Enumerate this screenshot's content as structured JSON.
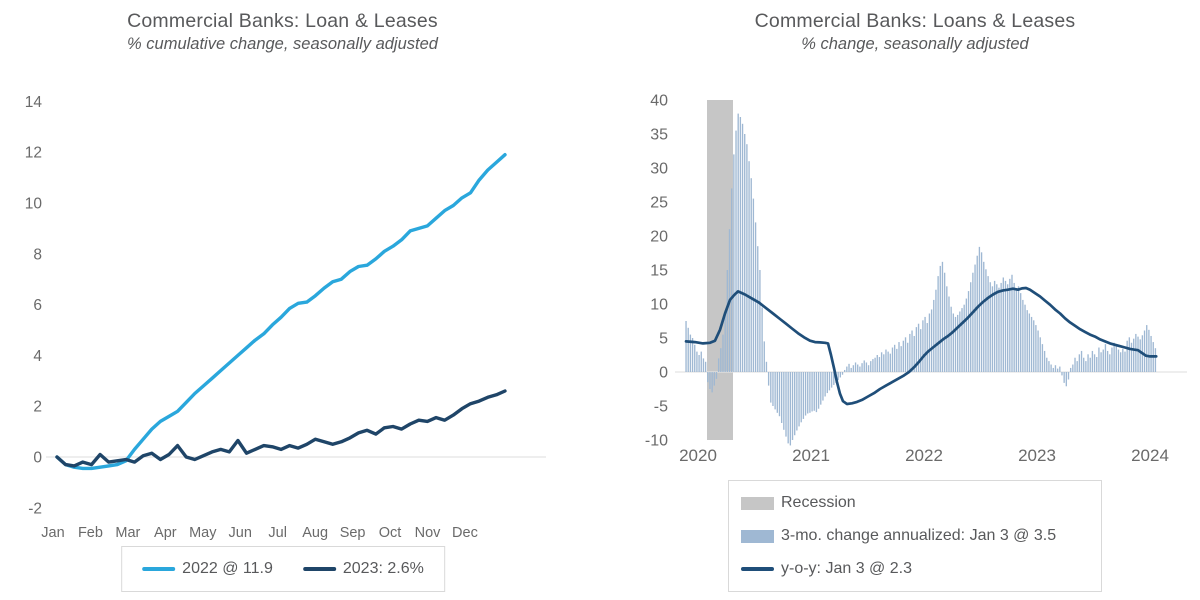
{
  "chart_data": [
    {
      "type": "line",
      "title": "Commercial Banks: Loan & Leases",
      "subtitle": "% cumulative change, seasonally adjusted",
      "ylim": [
        -2,
        14
      ],
      "y_ticks": [
        14,
        12,
        10,
        8,
        6,
        4,
        2,
        0,
        -2
      ],
      "x_labels": [
        "Jan",
        "Feb",
        "Mar",
        "Apr",
        "May",
        "Jun",
        "Jul",
        "Aug",
        "Sep",
        "Oct",
        "Nov",
        "Dec"
      ],
      "grid": "zero-line-only",
      "legend_position": "bottom-center",
      "axis_text_color": "#6a6a6a",
      "series": [
        {
          "name": "2022 @ 11.9",
          "color": "#2aa7dc",
          "final_value": 11.9,
          "values": [
            0,
            -0.3,
            -0.4,
            -0.45,
            -0.45,
            -0.4,
            -0.35,
            -0.3,
            -0.15,
            0.3,
            0.7,
            1.1,
            1.4,
            1.6,
            1.8,
            2.15,
            2.5,
            2.8,
            3.1,
            3.4,
            3.7,
            4.0,
            4.3,
            4.6,
            4.85,
            5.2,
            5.5,
            5.85,
            6.05,
            6.1,
            6.35,
            6.65,
            6.9,
            7.0,
            7.3,
            7.5,
            7.55,
            7.8,
            8.1,
            8.3,
            8.55,
            8.9,
            9.0,
            9.1,
            9.4,
            9.7,
            9.9,
            10.2,
            10.4,
            10.9,
            11.3,
            11.6,
            11.9
          ]
        },
        {
          "name": "2023: 2.6%",
          "color": "#1f4568",
          "final_value": 2.6,
          "values": [
            0,
            -0.3,
            -0.35,
            -0.2,
            -0.3,
            0.1,
            -0.2,
            -0.15,
            -0.1,
            -0.2,
            0.05,
            0.15,
            -0.1,
            0.1,
            0.45,
            0.0,
            -0.1,
            0.05,
            0.2,
            0.3,
            0.2,
            0.65,
            0.15,
            0.3,
            0.45,
            0.4,
            0.3,
            0.45,
            0.35,
            0.5,
            0.7,
            0.6,
            0.5,
            0.6,
            0.75,
            0.95,
            1.05,
            0.9,
            1.15,
            1.2,
            1.1,
            1.3,
            1.45,
            1.4,
            1.55,
            1.45,
            1.65,
            1.9,
            2.1,
            2.2,
            2.35,
            2.45,
            2.6
          ]
        }
      ]
    },
    {
      "type": "bar",
      "title": "Commercial Banks: Loans & Leases",
      "subtitle": "% change, seasonally adjusted",
      "ylim": [
        -10,
        40
      ],
      "y_ticks": [
        40,
        35,
        30,
        25,
        20,
        15,
        10,
        5,
        0,
        -5,
        -10
      ],
      "x_labels": [
        "2020",
        "2021",
        "2022",
        "2023",
        "2024"
      ],
      "grid": "zero-line-only",
      "legend_position": "bottom",
      "axis_text_color": "#6a6a6a",
      "recession": {
        "label": "Recession",
        "color": "#c6c6c6",
        "start_year": 2020.08,
        "end_year": 2020.31
      },
      "bar_series": {
        "name": "3-mo. change annualized: Jan 3 @ 3.5",
        "color": "#9fb8d3",
        "final_value": 3.5,
        "start_year": 2019.894,
        "step_years": 0.01923,
        "values": [
          7.5,
          6.5,
          5.5,
          5.0,
          4.0,
          3.0,
          2.5,
          3.0,
          2.0,
          1.5,
          -1.5,
          -2.5,
          -3.0,
          -2.0,
          -1.0,
          2.0,
          3.5,
          5.5,
          9.0,
          15.0,
          21.0,
          27.0,
          32.0,
          35.5,
          38.0,
          37.5,
          36.5,
          35.0,
          33.5,
          31.0,
          28.5,
          25.5,
          22.0,
          18.5,
          15.0,
          9.5,
          4.5,
          1.5,
          -2.0,
          -4.5,
          -5.0,
          -5.5,
          -6.0,
          -6.5,
          -7.5,
          -8.5,
          -9.5,
          -10.5,
          -10.8,
          -10.0,
          -9.3,
          -8.6,
          -8.0,
          -7.4,
          -6.9,
          -6.4,
          -6.1,
          -6.0,
          -5.8,
          -5.7,
          -5.9,
          -5.4,
          -4.8,
          -4.2,
          -3.6,
          -3.1,
          -2.7,
          -2.3,
          -1.9,
          -1.6,
          -1.2,
          -0.8,
          -0.4,
          0.3,
          0.8,
          1.2,
          0.6,
          1.0,
          1.4,
          1.1,
          0.8,
          1.3,
          1.7,
          1.4,
          1.0,
          1.6,
          1.9,
          2.1,
          2.5,
          2.2,
          2.9,
          2.6,
          3.3,
          3.0,
          2.7,
          3.6,
          4.0,
          3.4,
          4.4,
          3.8,
          4.6,
          5.1,
          4.3,
          5.6,
          6.1,
          5.3,
          6.6,
          7.1,
          6.3,
          7.6,
          8.1,
          7.2,
          8.6,
          9.2,
          10.6,
          12.1,
          14.1,
          15.6,
          16.2,
          14.6,
          12.6,
          11.1,
          9.6,
          8.6,
          8.1,
          8.4,
          8.9,
          9.4,
          9.9,
          10.8,
          11.9,
          13.2,
          14.6,
          15.8,
          17.1,
          18.4,
          17.6,
          16.2,
          15.1,
          14.1,
          13.2,
          12.6,
          13.4,
          12.9,
          12.4,
          13.1,
          13.9,
          13.4,
          12.9,
          13.7,
          14.3,
          13.1,
          12.3,
          12.6,
          11.6,
          10.6,
          9.9,
          9.1,
          8.6,
          8.1,
          7.6,
          6.9,
          6.1,
          5.1,
          4.1,
          3.1,
          2.1,
          1.6,
          1.1,
          0.6,
          1.0,
          0.5,
          0.8,
          -0.5,
          -1.6,
          -2.1,
          -1.1,
          0.6,
          1.1,
          2.1,
          1.6,
          2.6,
          3.1,
          2.1,
          1.6,
          2.6,
          2.1,
          3.1,
          2.6,
          2.2,
          3.6,
          2.9,
          3.3,
          4.1,
          3.1,
          2.6,
          3.6,
          4.3,
          3.9,
          3.3,
          2.9,
          3.4,
          3.0,
          4.6,
          5.1,
          4.3,
          4.9,
          5.6,
          5.2,
          4.8,
          5.4,
          6.1,
          6.9,
          6.2,
          5.3,
          4.4,
          3.5
        ]
      },
      "line_series": {
        "name": "y-o-y: Jan 3 @ 2.3",
        "color": "#1f4e79",
        "final_value": 2.3,
        "points": [
          [
            2019.894,
            4.5
          ],
          [
            2019.973,
            4.4
          ],
          [
            2020.044,
            4.2
          ],
          [
            2020.106,
            4.3
          ],
          [
            2020.15,
            4.6
          ],
          [
            2020.195,
            6.2
          ],
          [
            2020.239,
            8.6
          ],
          [
            2020.283,
            10.6
          ],
          [
            2020.319,
            11.3
          ],
          [
            2020.354,
            11.85
          ],
          [
            2020.416,
            11.4
          ],
          [
            2020.478,
            10.8
          ],
          [
            2020.54,
            10.2
          ],
          [
            2020.602,
            9.4
          ],
          [
            2020.664,
            8.6
          ],
          [
            2020.726,
            7.8
          ],
          [
            2020.779,
            7.1
          ],
          [
            2020.832,
            6.4
          ],
          [
            2020.885,
            5.7
          ],
          [
            2020.938,
            5.1
          ],
          [
            2020.991,
            4.6
          ],
          [
            2021.035,
            4.4
          ],
          [
            2021.08,
            4.35
          ],
          [
            2021.124,
            4.3
          ],
          [
            2021.15,
            4.2
          ],
          [
            2021.177,
            2.5
          ],
          [
            2021.204,
            0.5
          ],
          [
            2021.23,
            -1.5
          ],
          [
            2021.257,
            -3.2
          ],
          [
            2021.283,
            -4.3
          ],
          [
            2021.319,
            -4.7
          ],
          [
            2021.363,
            -4.6
          ],
          [
            2021.407,
            -4.4
          ],
          [
            2021.451,
            -4.1
          ],
          [
            2021.504,
            -3.6
          ],
          [
            2021.558,
            -3.1
          ],
          [
            2021.611,
            -2.5
          ],
          [
            2021.664,
            -2.0
          ],
          [
            2021.717,
            -1.5
          ],
          [
            2021.77,
            -1.0
          ],
          [
            2021.823,
            -0.5
          ],
          [
            2021.867,
            0.0
          ],
          [
            2021.912,
            0.7
          ],
          [
            2021.956,
            1.5
          ],
          [
            2022.0,
            2.4
          ],
          [
            2022.035,
            3.0
          ],
          [
            2022.08,
            3.6
          ],
          [
            2022.124,
            4.2
          ],
          [
            2022.168,
            4.8
          ],
          [
            2022.212,
            5.3
          ],
          [
            2022.257,
            5.9
          ],
          [
            2022.301,
            6.6
          ],
          [
            2022.345,
            7.3
          ],
          [
            2022.389,
            8.0
          ],
          [
            2022.434,
            8.8
          ],
          [
            2022.478,
            9.6
          ],
          [
            2022.522,
            10.3
          ],
          [
            2022.566,
            10.9
          ],
          [
            2022.611,
            11.4
          ],
          [
            2022.655,
            11.8
          ],
          [
            2022.699,
            12.0
          ],
          [
            2022.743,
            12.1
          ],
          [
            2022.788,
            12.25
          ],
          [
            2022.832,
            12.1
          ],
          [
            2022.867,
            12.3
          ],
          [
            2022.903,
            12.35
          ],
          [
            2022.938,
            12.1
          ],
          [
            2022.982,
            11.6
          ],
          [
            2023.027,
            11.1
          ],
          [
            2023.071,
            10.5
          ],
          [
            2023.115,
            9.9
          ],
          [
            2023.159,
            9.2
          ],
          [
            2023.204,
            8.6
          ],
          [
            2023.248,
            7.9
          ],
          [
            2023.292,
            7.3
          ],
          [
            2023.336,
            6.8
          ],
          [
            2023.381,
            6.3
          ],
          [
            2023.425,
            5.9
          ],
          [
            2023.469,
            5.5
          ],
          [
            2023.513,
            5.2
          ],
          [
            2023.558,
            4.8
          ],
          [
            2023.602,
            4.5
          ],
          [
            2023.646,
            4.2
          ],
          [
            2023.69,
            4.0
          ],
          [
            2023.735,
            3.8
          ],
          [
            2023.779,
            3.6
          ],
          [
            2023.823,
            3.4
          ],
          [
            2023.858,
            3.3
          ],
          [
            2023.894,
            3.2
          ],
          [
            2023.929,
            2.8
          ],
          [
            2023.965,
            2.4
          ],
          [
            2024.0,
            2.3
          ],
          [
            2024.055,
            2.3
          ]
        ]
      }
    }
  ]
}
